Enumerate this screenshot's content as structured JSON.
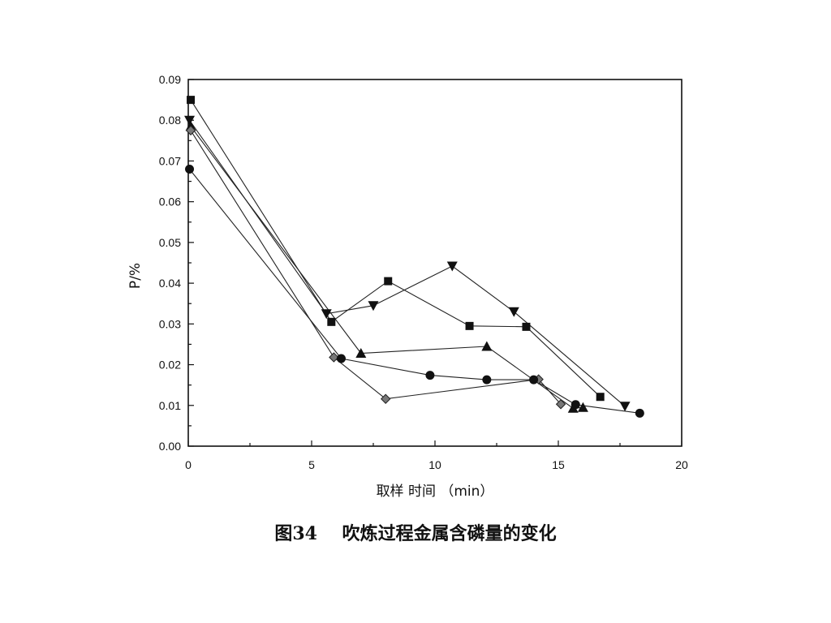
{
  "chart_data": {
    "type": "line",
    "xlabel": "取样 时间 （min）",
    "ylabel": "P/%",
    "xlim": [
      0,
      20
    ],
    "ylim": [
      0,
      0.09
    ],
    "xticks": [
      "0",
      "5",
      "10",
      "15",
      "20"
    ],
    "yticks": [
      "0.00",
      "0.01",
      "0.02",
      "0.03",
      "0.04",
      "0.05",
      "0.06",
      "0.07",
      "0.08",
      "0.09"
    ],
    "grid": false,
    "series": [
      {
        "marker": "square",
        "points": [
          [
            0.1,
            0.085
          ],
          [
            5.8,
            0.0305
          ],
          [
            8.1,
            0.0405
          ],
          [
            11.4,
            0.0295
          ],
          [
            13.7,
            0.0293
          ],
          [
            16.7,
            0.0121
          ]
        ]
      },
      {
        "marker": "triangle-down",
        "points": [
          [
            0.05,
            0.08
          ],
          [
            5.6,
            0.0325
          ],
          [
            7.5,
            0.0345
          ],
          [
            10.7,
            0.0442
          ],
          [
            13.2,
            0.033
          ],
          [
            17.7,
            0.0098
          ]
        ]
      },
      {
        "marker": "triangle-up",
        "points": [
          [
            0.1,
            0.0785
          ],
          [
            7.0,
            0.0228
          ],
          [
            12.1,
            0.0245
          ],
          [
            15.6,
            0.0093
          ],
          [
            16.0,
            0.0095
          ]
        ]
      },
      {
        "marker": "diamond",
        "points": [
          [
            0.1,
            0.0775
          ],
          [
            5.9,
            0.0218
          ],
          [
            8.0,
            0.0116
          ],
          [
            14.2,
            0.0164
          ],
          [
            15.1,
            0.0103
          ]
        ]
      },
      {
        "marker": "circle",
        "points": [
          [
            0.05,
            0.068
          ],
          [
            6.2,
            0.0215
          ],
          [
            9.8,
            0.0174
          ],
          [
            12.1,
            0.0163
          ],
          [
            14.0,
            0.0163
          ],
          [
            15.7,
            0.0102
          ],
          [
            18.3,
            0.0081
          ]
        ]
      }
    ]
  },
  "caption": {
    "figure_no": "图34",
    "title": "吹炼过程金属含磷量的变化"
  }
}
